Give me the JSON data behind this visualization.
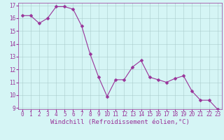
{
  "x": [
    0,
    1,
    2,
    3,
    4,
    5,
    6,
    7,
    8,
    9,
    10,
    11,
    12,
    13,
    14,
    15,
    16,
    17,
    18,
    19,
    20,
    21,
    22,
    23
  ],
  "y": [
    16.2,
    16.2,
    15.6,
    16.0,
    16.9,
    16.9,
    16.7,
    15.4,
    13.2,
    11.4,
    9.9,
    11.2,
    11.2,
    12.2,
    12.7,
    11.4,
    11.2,
    11.0,
    11.3,
    11.5,
    10.3,
    9.6,
    9.6,
    8.9
  ],
  "line_color": "#993399",
  "marker_color": "#993399",
  "bg_color": "#d5f5f5",
  "grid_color": "#aacccc",
  "xlabel": "Windchill (Refroidissement éolien,°C)",
  "ylim": [
    9,
    17
  ],
  "xlim": [
    -0.5,
    23.5
  ],
  "yticks": [
    9,
    10,
    11,
    12,
    13,
    14,
    15,
    16,
    17
  ],
  "xticks": [
    0,
    1,
    2,
    3,
    4,
    5,
    6,
    7,
    8,
    9,
    10,
    11,
    12,
    13,
    14,
    15,
    16,
    17,
    18,
    19,
    20,
    21,
    22,
    23
  ],
  "tick_fontsize": 5.5,
  "xlabel_fontsize": 6.5,
  "line_width": 0.8,
  "marker_size": 2.5
}
